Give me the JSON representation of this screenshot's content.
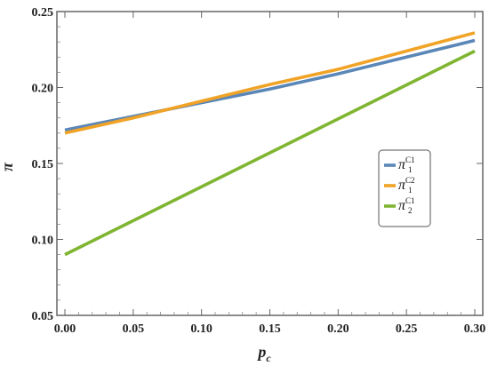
{
  "chart_data": {
    "type": "line",
    "title": "",
    "xlabel": {
      "main": "p",
      "sub": "c"
    },
    "ylabel": "π",
    "xlim": [
      0,
      0.3
    ],
    "ylim": [
      0.05,
      0.25
    ],
    "x_ticks": [
      "0.00",
      "0.05",
      "0.10",
      "0.15",
      "0.20",
      "0.25",
      "0.30"
    ],
    "y_ticks": [
      "0.05",
      "0.10",
      "0.15",
      "0.20",
      "0.25"
    ],
    "x_tick_values": [
      0,
      0.05,
      0.1,
      0.15,
      0.2,
      0.25,
      0.3
    ],
    "y_tick_values": [
      0.05,
      0.1,
      0.15,
      0.2,
      0.25
    ],
    "grid": false,
    "legend_position": "right",
    "series": [
      {
        "name": "π",
        "legend": {
          "main": "π",
          "sub": "1",
          "sup": "C1"
        },
        "color": "#5b87b8",
        "x": [
          0,
          0.05,
          0.1,
          0.15,
          0.2,
          0.25,
          0.3
        ],
        "y": [
          0.172,
          0.181,
          0.19,
          0.199,
          0.209,
          0.22,
          0.231
        ]
      },
      {
        "name": "π",
        "legend": {
          "main": "π",
          "sub": "1",
          "sup": "C2"
        },
        "color": "#f0a326",
        "x": [
          0,
          0.05,
          0.1,
          0.15,
          0.2,
          0.25,
          0.3
        ],
        "y": [
          0.17,
          0.18,
          0.191,
          0.202,
          0.212,
          0.224,
          0.236
        ]
      },
      {
        "name": "π",
        "legend": {
          "main": "π",
          "sub": "2",
          "sup": "C1"
        },
        "color": "#7fb531",
        "x": [
          0,
          0.3
        ],
        "y": [
          0.09,
          0.224
        ]
      }
    ]
  }
}
